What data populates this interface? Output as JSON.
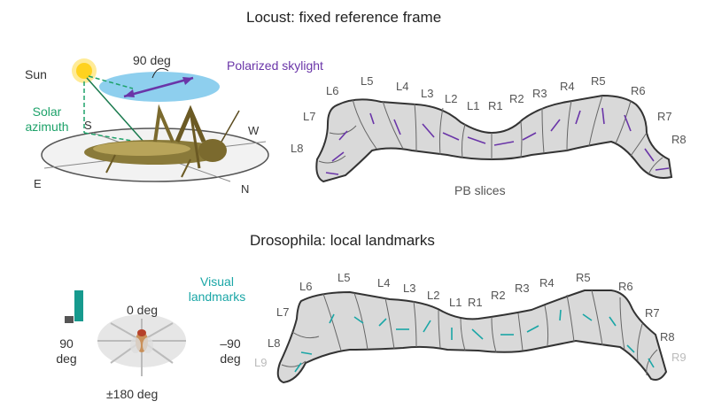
{
  "locust": {
    "title": "Locust: fixed reference frame",
    "sun": "Sun",
    "angle": "90 deg",
    "polarized": "Polarized skylight",
    "solar_azimuth": "Solar azimuth",
    "compass": {
      "S": "S",
      "W": "W",
      "E": "E",
      "N": "N"
    },
    "pb_slices": "PB slices",
    "left_labels": [
      "L6",
      "L5",
      "L4",
      "L3",
      "L2",
      "L1",
      "L7",
      "L8"
    ],
    "right_labels": [
      "R1",
      "R2",
      "R3",
      "R4",
      "R5",
      "R6",
      "R7",
      "R8"
    ]
  },
  "drosophila": {
    "title": "Drosophila: local landmarks",
    "visual_landmarks": "Visual landmarks",
    "deg0": "0 deg",
    "deg90": "90 deg",
    "degm90": "–90 deg",
    "deg180": "±180 deg",
    "left_labels": [
      "L6",
      "L5",
      "L4",
      "L3",
      "L2",
      "L1",
      "L7",
      "L8",
      "L9"
    ],
    "right_labels": [
      "R1",
      "R2",
      "R3",
      "R4",
      "R5",
      "R6",
      "R7",
      "R8",
      "R9"
    ]
  },
  "colors": {
    "purple": "#6a35a8",
    "teal": "#1aa6a6",
    "green": "#1ea26a",
    "sky": "#8ecfee",
    "pb_fill": "#d9d9d9"
  }
}
